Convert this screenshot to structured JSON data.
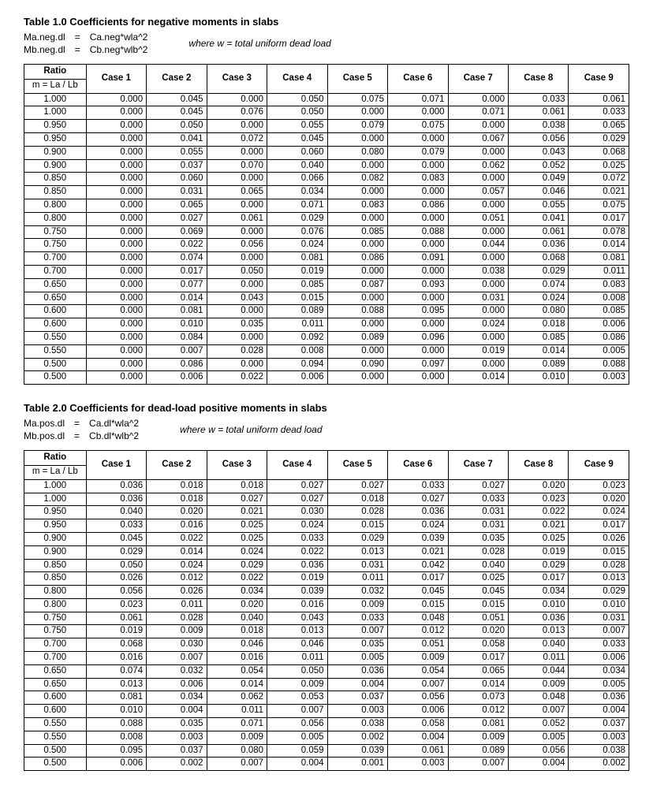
{
  "table1": {
    "title": "Table 1.0 Coefficients for negative moments in slabs",
    "formulas": [
      {
        "lhs": "Ma.neg.dl",
        "rhs": "Ca.neg*wla^2"
      },
      {
        "lhs": "Mb.neg.dl",
        "rhs": "Cb.neg*wlb^2"
      }
    ],
    "where": "where w = total uniform dead load",
    "ratio_label_top": "Ratio",
    "ratio_label_bot": "m = La / Lb",
    "case_labels": [
      "Case 1",
      "Case 2",
      "Case 3",
      "Case 4",
      "Case 5",
      "Case 6",
      "Case 7",
      "Case 8",
      "Case 9"
    ],
    "rows": [
      [
        "1.000",
        "0.000",
        "0.045",
        "0.000",
        "0.050",
        "0.075",
        "0.071",
        "0.000",
        "0.033",
        "0.061"
      ],
      [
        "1.000",
        "0.000",
        "0.045",
        "0.076",
        "0.050",
        "0.000",
        "0.000",
        "0.071",
        "0.061",
        "0.033"
      ],
      [
        "0.950",
        "0.000",
        "0.050",
        "0.000",
        "0.055",
        "0.079",
        "0.075",
        "0.000",
        "0.038",
        "0.065"
      ],
      [
        "0.950",
        "0.000",
        "0.041",
        "0.072",
        "0.045",
        "0.000",
        "0.000",
        "0.067",
        "0.056",
        "0.029"
      ],
      [
        "0.900",
        "0.000",
        "0.055",
        "0.000",
        "0.060",
        "0.080",
        "0.079",
        "0.000",
        "0.043",
        "0.068"
      ],
      [
        "0.900",
        "0.000",
        "0.037",
        "0.070",
        "0.040",
        "0.000",
        "0.000",
        "0.062",
        "0.052",
        "0.025"
      ],
      [
        "0.850",
        "0.000",
        "0.060",
        "0.000",
        "0.066",
        "0.082",
        "0.083",
        "0.000",
        "0.049",
        "0.072"
      ],
      [
        "0.850",
        "0.000",
        "0.031",
        "0.065",
        "0.034",
        "0.000",
        "0.000",
        "0.057",
        "0.046",
        "0.021"
      ],
      [
        "0.800",
        "0.000",
        "0.065",
        "0.000",
        "0.071",
        "0.083",
        "0.086",
        "0.000",
        "0.055",
        "0.075"
      ],
      [
        "0.800",
        "0.000",
        "0.027",
        "0.061",
        "0.029",
        "0.000",
        "0.000",
        "0.051",
        "0.041",
        "0.017"
      ],
      [
        "0.750",
        "0.000",
        "0.069",
        "0.000",
        "0.076",
        "0.085",
        "0.088",
        "0.000",
        "0.061",
        "0.078"
      ],
      [
        "0.750",
        "0.000",
        "0.022",
        "0.056",
        "0.024",
        "0.000",
        "0.000",
        "0.044",
        "0.036",
        "0.014"
      ],
      [
        "0.700",
        "0.000",
        "0.074",
        "0.000",
        "0.081",
        "0.086",
        "0.091",
        "0.000",
        "0.068",
        "0.081"
      ],
      [
        "0.700",
        "0.000",
        "0.017",
        "0.050",
        "0.019",
        "0.000",
        "0.000",
        "0.038",
        "0.029",
        "0.011"
      ],
      [
        "0.650",
        "0.000",
        "0.077",
        "0.000",
        "0.085",
        "0.087",
        "0.093",
        "0.000",
        "0.074",
        "0.083"
      ],
      [
        "0.650",
        "0.000",
        "0.014",
        "0.043",
        "0.015",
        "0.000",
        "0.000",
        "0.031",
        "0.024",
        "0.008"
      ],
      [
        "0.600",
        "0.000",
        "0.081",
        "0.000",
        "0.089",
        "0.088",
        "0.095",
        "0.000",
        "0.080",
        "0.085"
      ],
      [
        "0.600",
        "0.000",
        "0.010",
        "0.035",
        "0.011",
        "0.000",
        "0.000",
        "0.024",
        "0.018",
        "0.006"
      ],
      [
        "0.550",
        "0.000",
        "0.084",
        "0.000",
        "0.092",
        "0.089",
        "0.096",
        "0.000",
        "0.085",
        "0.086"
      ],
      [
        "0.550",
        "0.000",
        "0.007",
        "0.028",
        "0.008",
        "0.000",
        "0.000",
        "0.019",
        "0.014",
        "0.005"
      ],
      [
        "0.500",
        "0.000",
        "0.086",
        "0.000",
        "0.094",
        "0.090",
        "0.097",
        "0.000",
        "0.089",
        "0.088"
      ],
      [
        "0.500",
        "0.000",
        "0.006",
        "0.022",
        "0.006",
        "0.000",
        "0.000",
        "0.014",
        "0.010",
        "0.003"
      ]
    ]
  },
  "table2": {
    "title": "Table 2.0 Coefficients for dead-load positive moments in slabs",
    "formulas": [
      {
        "lhs": "Ma.pos.dl",
        "rhs": "Ca.dl*wla^2"
      },
      {
        "lhs": "Mb.pos.dl",
        "rhs": "Cb.dl*wlb^2"
      }
    ],
    "where": "where w = total uniform dead load",
    "ratio_label_top": "Ratio",
    "ratio_label_bot": "m = La / Lb",
    "case_labels": [
      "Case 1",
      "Case 2",
      "Case 3",
      "Case 4",
      "Case 5",
      "Case 6",
      "Case 7",
      "Case 8",
      "Case 9"
    ],
    "rows": [
      [
        "1.000",
        "0.036",
        "0.018",
        "0.018",
        "0.027",
        "0.027",
        "0.033",
        "0.027",
        "0.020",
        "0.023"
      ],
      [
        "1.000",
        "0.036",
        "0.018",
        "0.027",
        "0.027",
        "0.018",
        "0.027",
        "0.033",
        "0.023",
        "0.020"
      ],
      [
        "0.950",
        "0.040",
        "0.020",
        "0.021",
        "0.030",
        "0.028",
        "0.036",
        "0.031",
        "0.022",
        "0.024"
      ],
      [
        "0.950",
        "0.033",
        "0.016",
        "0.025",
        "0.024",
        "0.015",
        "0.024",
        "0.031",
        "0.021",
        "0.017"
      ],
      [
        "0.900",
        "0.045",
        "0.022",
        "0.025",
        "0.033",
        "0.029",
        "0.039",
        "0.035",
        "0.025",
        "0.026"
      ],
      [
        "0.900",
        "0.029",
        "0.014",
        "0.024",
        "0.022",
        "0.013",
        "0.021",
        "0.028",
        "0.019",
        "0.015"
      ],
      [
        "0.850",
        "0.050",
        "0.024",
        "0.029",
        "0.036",
        "0.031",
        "0.042",
        "0.040",
        "0.029",
        "0.028"
      ],
      [
        "0.850",
        "0.026",
        "0.012",
        "0.022",
        "0.019",
        "0.011",
        "0.017",
        "0.025",
        "0.017",
        "0.013"
      ],
      [
        "0.800",
        "0.056",
        "0.026",
        "0.034",
        "0.039",
        "0.032",
        "0.045",
        "0.045",
        "0.034",
        "0.029"
      ],
      [
        "0.800",
        "0.023",
        "0.011",
        "0.020",
        "0.016",
        "0.009",
        "0.015",
        "0.015",
        "0.010",
        "0.010"
      ],
      [
        "0.750",
        "0.061",
        "0.028",
        "0.040",
        "0.043",
        "0.033",
        "0.048",
        "0.051",
        "0.036",
        "0.031"
      ],
      [
        "0.750",
        "0.019",
        "0.009",
        "0.018",
        "0.013",
        "0.007",
        "0.012",
        "0.020",
        "0.013",
        "0.007"
      ],
      [
        "0.700",
        "0.068",
        "0.030",
        "0.046",
        "0.046",
        "0.035",
        "0.051",
        "0.058",
        "0.040",
        "0.033"
      ],
      [
        "0.700",
        "0.016",
        "0.007",
        "0.016",
        "0.011",
        "0.005",
        "0.009",
        "0.017",
        "0.011",
        "0.006"
      ],
      [
        "0.650",
        "0.074",
        "0.032",
        "0.054",
        "0.050",
        "0.036",
        "0.054",
        "0.065",
        "0.044",
        "0.034"
      ],
      [
        "0.650",
        "0.013",
        "0.006",
        "0.014",
        "0.009",
        "0.004",
        "0.007",
        "0.014",
        "0.009",
        "0.005"
      ],
      [
        "0.600",
        "0.081",
        "0.034",
        "0.062",
        "0.053",
        "0.037",
        "0.056",
        "0.073",
        "0.048",
        "0.036"
      ],
      [
        "0.600",
        "0.010",
        "0.004",
        "0.011",
        "0.007",
        "0.003",
        "0.006",
        "0.012",
        "0.007",
        "0.004"
      ],
      [
        "0.550",
        "0.088",
        "0.035",
        "0.071",
        "0.056",
        "0.038",
        "0.058",
        "0.081",
        "0.052",
        "0.037"
      ],
      [
        "0.550",
        "0.008",
        "0.003",
        "0.009",
        "0.005",
        "0.002",
        "0.004",
        "0.009",
        "0.005",
        "0.003"
      ],
      [
        "0.500",
        "0.095",
        "0.037",
        "0.080",
        "0.059",
        "0.039",
        "0.061",
        "0.089",
        "0.056",
        "0.038"
      ],
      [
        "0.500",
        "0.006",
        "0.002",
        "0.007",
        "0.004",
        "0.001",
        "0.003",
        "0.007",
        "0.004",
        "0.002"
      ]
    ]
  }
}
